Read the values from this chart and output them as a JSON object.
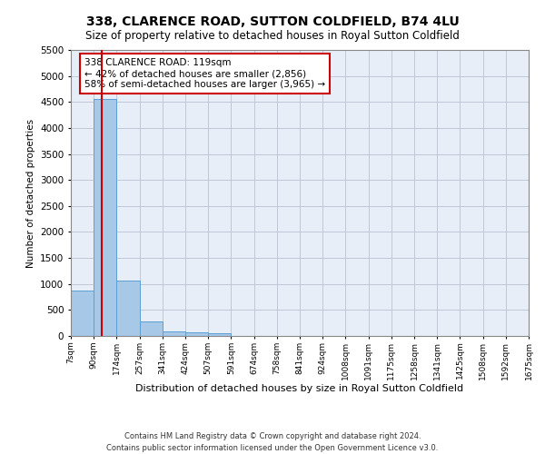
{
  "title": "338, CLARENCE ROAD, SUTTON COLDFIELD, B74 4LU",
  "subtitle": "Size of property relative to detached houses in Royal Sutton Coldfield",
  "xlabel": "Distribution of detached houses by size in Royal Sutton Coldfield",
  "ylabel": "Number of detached properties",
  "footer_line1": "Contains HM Land Registry data © Crown copyright and database right 2024.",
  "footer_line2": "Contains public sector information licensed under the Open Government Licence v3.0.",
  "annotation_line1": "338 CLARENCE ROAD: 119sqm",
  "annotation_line2": "← 42% of detached houses are smaller (2,856)",
  "annotation_line3": "58% of semi-detached houses are larger (3,965) →",
  "bar_color": "#a8c8e8",
  "bar_edge_color": "#5a9fd4",
  "vline_color": "#cc0000",
  "bg_color": "#e8eef8",
  "grid_color": "#c0c8d8",
  "bins": [
    7,
    90,
    174,
    257,
    341,
    424,
    507,
    591,
    674,
    758,
    841,
    924,
    1008,
    1091,
    1175,
    1258,
    1341,
    1425,
    1508,
    1592,
    1675
  ],
  "bin_labels": [
    "7sqm",
    "90sqm",
    "174sqm",
    "257sqm",
    "341sqm",
    "424sqm",
    "507sqm",
    "591sqm",
    "674sqm",
    "758sqm",
    "841sqm",
    "924sqm",
    "1008sqm",
    "1091sqm",
    "1175sqm",
    "1258sqm",
    "1341sqm",
    "1425sqm",
    "1508sqm",
    "1592sqm",
    "1675sqm"
  ],
  "bar_heights": [
    880,
    4560,
    1060,
    285,
    80,
    70,
    55,
    0,
    0,
    0,
    0,
    0,
    0,
    0,
    0,
    0,
    0,
    0,
    0,
    0
  ],
  "property_size": 119,
  "ylim": [
    0,
    5500
  ],
  "yticks": [
    0,
    500,
    1000,
    1500,
    2000,
    2500,
    3000,
    3500,
    4000,
    4500,
    5000,
    5500
  ]
}
